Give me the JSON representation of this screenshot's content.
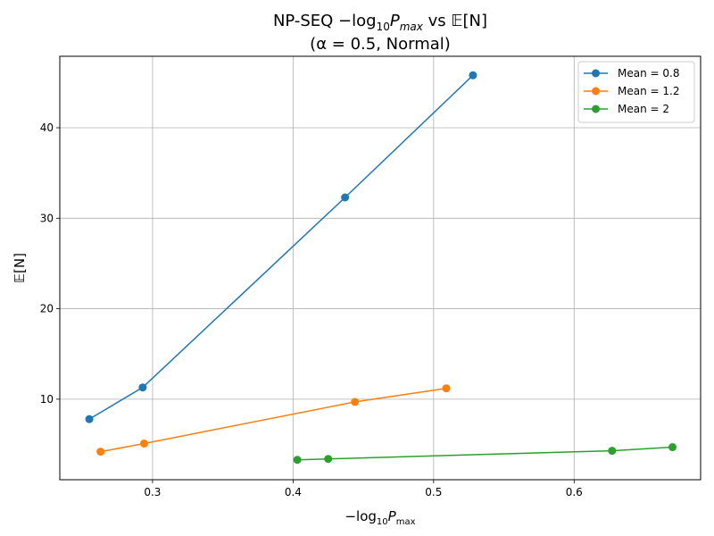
{
  "chart_data": {
    "type": "line",
    "title": "NP-SEQ −log₁₀ P_max vs 𝔼[N]",
    "title_line1_prefix": "NP-SEQ −log",
    "title_line1_sub": "10",
    "title_line1_var": "P",
    "title_line1_varsub": "max",
    "title_line1_mid": " vs ",
    "title_line1_E": "𝔼",
    "title_line1_suffix": "[N]",
    "subtitle": "(α = 0.5, Normal)",
    "xlabel": "−log₁₀ P_max",
    "xlabel_prefix": "−log",
    "xlabel_sub": "10",
    "xlabel_var": "P",
    "xlabel_varsub": "max",
    "ylabel": "𝔼[N]",
    "xlim": [
      0.234,
      0.69
    ],
    "ylim": [
      1.1,
      47.9
    ],
    "xticks": [
      0.3,
      0.4,
      0.5,
      0.6
    ],
    "xtick_labels": [
      "0.3",
      "0.4",
      "0.5",
      "0.6"
    ],
    "yticks": [
      10,
      20,
      30,
      40
    ],
    "ytick_labels": [
      "10",
      "20",
      "30",
      "40"
    ],
    "grid": true,
    "legend_position": "top-right",
    "series": [
      {
        "name": "Mean = 0.8",
        "color": "#1f77b4",
        "x": [
          0.255,
          0.293,
          0.437,
          0.528
        ],
        "y": [
          7.8,
          11.3,
          32.3,
          45.8
        ]
      },
      {
        "name": "Mean = 1.2",
        "color": "#ff7f0e",
        "x": [
          0.263,
          0.294,
          0.444,
          0.509
        ],
        "y": [
          4.2,
          5.1,
          9.7,
          11.2
        ]
      },
      {
        "name": "Mean = 2",
        "color": "#2ca02c",
        "x": [
          0.403,
          0.425,
          0.627,
          0.67
        ],
        "y": [
          3.3,
          3.4,
          4.3,
          4.7
        ]
      }
    ]
  }
}
